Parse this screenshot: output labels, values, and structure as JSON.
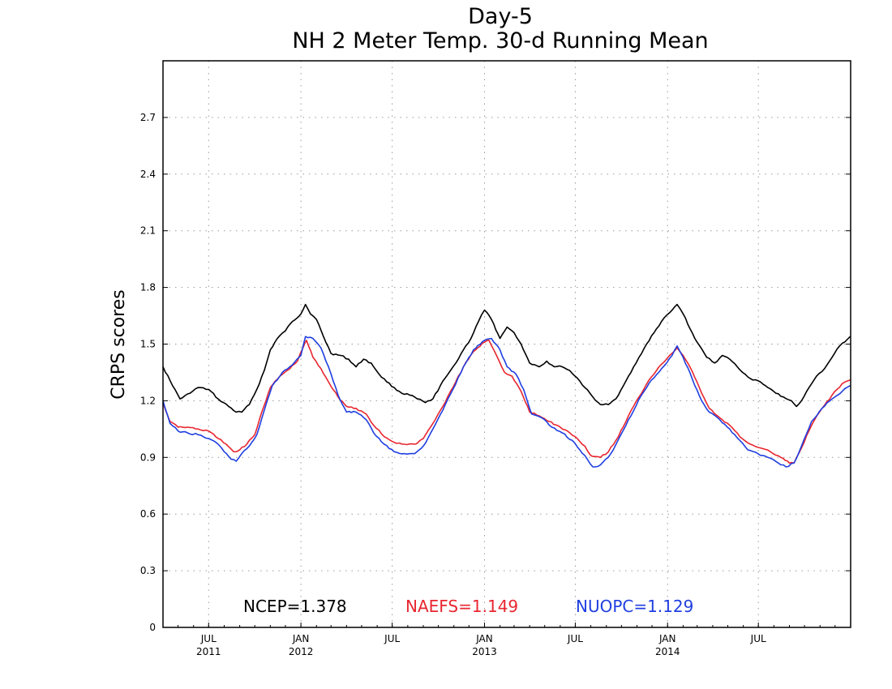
{
  "chart_data": {
    "type": "line",
    "title": "Day-5",
    "subtitle": "NH 2 Meter Temp. 30-d Running Mean",
    "xlabel": "",
    "ylabel": "CRPS scores",
    "ylim": [
      0,
      3.0
    ],
    "xlim": [
      "2011-04-01",
      "2015-01-01"
    ],
    "y_ticks": [
      "0",
      "0.3",
      "0.6",
      "0.9",
      "1.2",
      "1.5",
      "1.8",
      "2.1",
      "2.4",
      "2.7"
    ],
    "x_ticks": [
      {
        "date": "2011-07-01",
        "month": "JUL",
        "year": "2011"
      },
      {
        "date": "2012-01-01",
        "month": "JAN",
        "year": "2012"
      },
      {
        "date": "2012-07-01",
        "month": "JUL",
        "year": ""
      },
      {
        "date": "2013-01-01",
        "month": "JAN",
        "year": "2013"
      },
      {
        "date": "2013-07-01",
        "month": "JUL",
        "year": ""
      },
      {
        "date": "2014-01-01",
        "month": "JAN",
        "year": "2014"
      },
      {
        "date": "2014-07-01",
        "month": "JUL",
        "year": ""
      }
    ],
    "grid": true,
    "legend_position": "bottom",
    "series": [
      {
        "name": "NCEP",
        "legend": "NCEP=1.378",
        "color": "#000000",
        "points": [
          [
            "2011-04-01",
            1.38
          ],
          [
            "2011-04-20",
            1.28
          ],
          [
            "2011-05-05",
            1.21
          ],
          [
            "2011-05-25",
            1.24
          ],
          [
            "2011-06-10",
            1.27
          ],
          [
            "2011-07-01",
            1.26
          ],
          [
            "2011-07-20",
            1.21
          ],
          [
            "2011-08-10",
            1.17
          ],
          [
            "2011-08-25",
            1.14
          ],
          [
            "2011-09-05",
            1.14
          ],
          [
            "2011-09-20",
            1.18
          ],
          [
            "2011-10-05",
            1.26
          ],
          [
            "2011-10-20",
            1.36
          ],
          [
            "2011-11-01",
            1.47
          ],
          [
            "2011-11-15",
            1.53
          ],
          [
            "2011-12-01",
            1.57
          ],
          [
            "2011-12-15",
            1.62
          ],
          [
            "2012-01-01",
            1.66
          ],
          [
            "2012-01-10",
            1.71
          ],
          [
            "2012-01-20",
            1.66
          ],
          [
            "2012-02-01",
            1.63
          ],
          [
            "2012-02-15",
            1.54
          ],
          [
            "2012-03-01",
            1.45
          ],
          [
            "2012-03-20",
            1.44
          ],
          [
            "2012-04-05",
            1.42
          ],
          [
            "2012-04-20",
            1.38
          ],
          [
            "2012-05-05",
            1.42
          ],
          [
            "2012-05-20",
            1.4
          ],
          [
            "2012-06-05",
            1.34
          ],
          [
            "2012-06-20",
            1.3
          ],
          [
            "2012-07-05",
            1.27
          ],
          [
            "2012-07-20",
            1.24
          ],
          [
            "2012-08-05",
            1.23
          ],
          [
            "2012-08-20",
            1.21
          ],
          [
            "2012-09-05",
            1.19
          ],
          [
            "2012-09-20",
            1.21
          ],
          [
            "2012-10-05",
            1.28
          ],
          [
            "2012-10-20",
            1.34
          ],
          [
            "2012-11-05",
            1.4
          ],
          [
            "2012-11-20",
            1.47
          ],
          [
            "2012-12-05",
            1.53
          ],
          [
            "2012-12-20",
            1.62
          ],
          [
            "2013-01-01",
            1.68
          ],
          [
            "2013-01-15",
            1.63
          ],
          [
            "2013-02-01",
            1.53
          ],
          [
            "2013-02-15",
            1.59
          ],
          [
            "2013-03-01",
            1.56
          ],
          [
            "2013-03-15",
            1.5
          ],
          [
            "2013-04-01",
            1.4
          ],
          [
            "2013-04-20",
            1.38
          ],
          [
            "2013-05-05",
            1.41
          ],
          [
            "2013-05-20",
            1.38
          ],
          [
            "2013-06-05",
            1.38
          ],
          [
            "2013-06-20",
            1.36
          ],
          [
            "2013-07-05",
            1.32
          ],
          [
            "2013-07-20",
            1.27
          ],
          [
            "2013-08-05",
            1.22
          ],
          [
            "2013-08-20",
            1.18
          ],
          [
            "2013-09-05",
            1.18
          ],
          [
            "2013-09-20",
            1.21
          ],
          [
            "2013-10-05",
            1.28
          ],
          [
            "2013-10-20",
            1.35
          ],
          [
            "2013-11-05",
            1.43
          ],
          [
            "2013-11-20",
            1.5
          ],
          [
            "2013-12-05",
            1.56
          ],
          [
            "2013-12-20",
            1.62
          ],
          [
            "2014-01-10",
            1.68
          ],
          [
            "2014-01-20",
            1.71
          ],
          [
            "2014-02-01",
            1.66
          ],
          [
            "2014-02-15",
            1.58
          ],
          [
            "2014-03-01",
            1.51
          ],
          [
            "2014-03-20",
            1.43
          ],
          [
            "2014-04-05",
            1.4
          ],
          [
            "2014-04-20",
            1.44
          ],
          [
            "2014-05-05",
            1.42
          ],
          [
            "2014-05-20",
            1.38
          ],
          [
            "2014-06-05",
            1.34
          ],
          [
            "2014-06-20",
            1.31
          ],
          [
            "2014-07-05",
            1.3
          ],
          [
            "2014-07-20",
            1.27
          ],
          [
            "2014-08-05",
            1.24
          ],
          [
            "2014-08-20",
            1.22
          ],
          [
            "2014-09-05",
            1.2
          ],
          [
            "2014-09-15",
            1.17
          ],
          [
            "2014-09-25",
            1.2
          ],
          [
            "2014-10-10",
            1.27
          ],
          [
            "2014-10-25",
            1.33
          ],
          [
            "2014-11-10",
            1.37
          ],
          [
            "2014-11-25",
            1.43
          ],
          [
            "2014-12-10",
            1.49
          ],
          [
            "2014-12-31",
            1.54
          ]
        ]
      },
      {
        "name": "NAEFS",
        "legend": "NAEFS=1.149",
        "color": "#e8262f",
        "points": [
          [
            "2011-04-01",
            1.19
          ],
          [
            "2011-04-15",
            1.09
          ],
          [
            "2011-05-01",
            1.06
          ],
          [
            "2011-05-20",
            1.06
          ],
          [
            "2011-06-10",
            1.05
          ],
          [
            "2011-07-01",
            1.04
          ],
          [
            "2011-07-20",
            1.0
          ],
          [
            "2011-08-05",
            0.97
          ],
          [
            "2011-08-20",
            0.93
          ],
          [
            "2011-09-01",
            0.94
          ],
          [
            "2011-09-15",
            0.97
          ],
          [
            "2011-10-01",
            1.02
          ],
          [
            "2011-10-15",
            1.14
          ],
          [
            "2011-11-01",
            1.27
          ],
          [
            "2011-11-20",
            1.33
          ],
          [
            "2011-12-10",
            1.37
          ],
          [
            "2011-12-25",
            1.41
          ],
          [
            "2012-01-05",
            1.48
          ],
          [
            "2012-01-12",
            1.52
          ],
          [
            "2012-01-25",
            1.43
          ],
          [
            "2012-02-10",
            1.37
          ],
          [
            "2012-02-25",
            1.3
          ],
          [
            "2012-03-15",
            1.22
          ],
          [
            "2012-04-01",
            1.17
          ],
          [
            "2012-04-20",
            1.16
          ],
          [
            "2012-05-10",
            1.13
          ],
          [
            "2012-05-25",
            1.07
          ],
          [
            "2012-06-15",
            1.01
          ],
          [
            "2012-07-05",
            0.98
          ],
          [
            "2012-07-25",
            0.97
          ],
          [
            "2012-08-15",
            0.97
          ],
          [
            "2012-09-01",
            1.0
          ],
          [
            "2012-09-20",
            1.08
          ],
          [
            "2012-10-10",
            1.17
          ],
          [
            "2012-10-30",
            1.27
          ],
          [
            "2012-11-20",
            1.38
          ],
          [
            "2012-12-10",
            1.46
          ],
          [
            "2013-01-01",
            1.51
          ],
          [
            "2013-01-10",
            1.52
          ],
          [
            "2013-01-25",
            1.44
          ],
          [
            "2013-02-10",
            1.35
          ],
          [
            "2013-02-25",
            1.33
          ],
          [
            "2013-03-15",
            1.25
          ],
          [
            "2013-04-01",
            1.14
          ],
          [
            "2013-04-20",
            1.12
          ],
          [
            "2013-05-10",
            1.09
          ],
          [
            "2013-06-01",
            1.06
          ],
          [
            "2013-06-20",
            1.03
          ],
          [
            "2013-07-05",
            1.0
          ],
          [
            "2013-07-20",
            0.96
          ],
          [
            "2013-08-01",
            0.91
          ],
          [
            "2013-08-20",
            0.9
          ],
          [
            "2013-09-05",
            0.93
          ],
          [
            "2013-09-25",
            1.01
          ],
          [
            "2013-10-15",
            1.12
          ],
          [
            "2013-11-05",
            1.22
          ],
          [
            "2013-11-25",
            1.31
          ],
          [
            "2013-12-15",
            1.38
          ],
          [
            "2014-01-05",
            1.44
          ],
          [
            "2014-01-20",
            1.48
          ],
          [
            "2014-02-01",
            1.44
          ],
          [
            "2014-02-20",
            1.35
          ],
          [
            "2014-03-10",
            1.24
          ],
          [
            "2014-03-25",
            1.16
          ],
          [
            "2014-04-15",
            1.11
          ],
          [
            "2014-05-05",
            1.07
          ],
          [
            "2014-05-25",
            1.01
          ],
          [
            "2014-06-15",
            0.97
          ],
          [
            "2014-07-05",
            0.95
          ],
          [
            "2014-07-25",
            0.93
          ],
          [
            "2014-08-15",
            0.9
          ],
          [
            "2014-09-01",
            0.87
          ],
          [
            "2014-09-10",
            0.87
          ],
          [
            "2014-09-25",
            0.95
          ],
          [
            "2014-10-15",
            1.07
          ],
          [
            "2014-11-05",
            1.16
          ],
          [
            "2014-11-25",
            1.23
          ],
          [
            "2014-12-15",
            1.29
          ],
          [
            "2014-12-31",
            1.31
          ]
        ]
      },
      {
        "name": "NUOPC",
        "legend": "NUOPC=1.129",
        "color": "#1f3fe0",
        "points": [
          [
            "2011-04-01",
            1.2
          ],
          [
            "2011-04-15",
            1.08
          ],
          [
            "2011-05-01",
            1.04
          ],
          [
            "2011-05-20",
            1.03
          ],
          [
            "2011-06-10",
            1.02
          ],
          [
            "2011-07-01",
            1.0
          ],
          [
            "2011-07-20",
            0.97
          ],
          [
            "2011-08-01",
            0.93
          ],
          [
            "2011-08-15",
            0.89
          ],
          [
            "2011-08-25",
            0.88
          ],
          [
            "2011-09-05",
            0.92
          ],
          [
            "2011-09-20",
            0.96
          ],
          [
            "2011-10-05",
            1.02
          ],
          [
            "2011-10-20",
            1.15
          ],
          [
            "2011-11-05",
            1.28
          ],
          [
            "2011-11-25",
            1.35
          ],
          [
            "2011-12-15",
            1.39
          ],
          [
            "2012-01-01",
            1.44
          ],
          [
            "2012-01-10",
            1.54
          ],
          [
            "2012-01-25",
            1.53
          ],
          [
            "2012-02-10",
            1.48
          ],
          [
            "2012-02-25",
            1.38
          ],
          [
            "2012-03-15",
            1.23
          ],
          [
            "2012-04-01",
            1.14
          ],
          [
            "2012-04-20",
            1.14
          ],
          [
            "2012-05-10",
            1.1
          ],
          [
            "2012-05-25",
            1.03
          ],
          [
            "2012-06-15",
            0.97
          ],
          [
            "2012-07-05",
            0.93
          ],
          [
            "2012-07-25",
            0.92
          ],
          [
            "2012-08-15",
            0.92
          ],
          [
            "2012-09-01",
            0.96
          ],
          [
            "2012-09-20",
            1.05
          ],
          [
            "2012-10-10",
            1.15
          ],
          [
            "2012-10-30",
            1.26
          ],
          [
            "2012-11-20",
            1.38
          ],
          [
            "2012-12-10",
            1.47
          ],
          [
            "2013-01-01",
            1.52
          ],
          [
            "2013-01-15",
            1.53
          ],
          [
            "2013-02-01",
            1.47
          ],
          [
            "2013-02-15",
            1.38
          ],
          [
            "2013-03-05",
            1.34
          ],
          [
            "2013-03-20",
            1.26
          ],
          [
            "2013-04-05",
            1.13
          ],
          [
            "2013-04-25",
            1.11
          ],
          [
            "2013-05-15",
            1.06
          ],
          [
            "2013-06-05",
            1.03
          ],
          [
            "2013-06-25",
            0.99
          ],
          [
            "2013-07-10",
            0.94
          ],
          [
            "2013-07-25",
            0.89
          ],
          [
            "2013-08-05",
            0.85
          ],
          [
            "2013-08-20",
            0.86
          ],
          [
            "2013-09-10",
            0.92
          ],
          [
            "2013-09-30",
            1.02
          ],
          [
            "2013-10-20",
            1.12
          ],
          [
            "2013-11-10",
            1.23
          ],
          [
            "2013-11-30",
            1.31
          ],
          [
            "2013-12-20",
            1.37
          ],
          [
            "2014-01-10",
            1.44
          ],
          [
            "2014-01-20",
            1.49
          ],
          [
            "2014-02-01",
            1.43
          ],
          [
            "2014-02-20",
            1.31
          ],
          [
            "2014-03-10",
            1.2
          ],
          [
            "2014-03-25",
            1.14
          ],
          [
            "2014-04-15",
            1.1
          ],
          [
            "2014-05-05",
            1.05
          ],
          [
            "2014-05-25",
            0.99
          ],
          [
            "2014-06-10",
            0.94
          ],
          [
            "2014-06-30",
            0.92
          ],
          [
            "2014-07-20",
            0.9
          ],
          [
            "2014-08-10",
            0.87
          ],
          [
            "2014-08-25",
            0.85
          ],
          [
            "2014-09-10",
            0.87
          ],
          [
            "2014-09-25",
            0.96
          ],
          [
            "2014-10-15",
            1.09
          ],
          [
            "2014-11-05",
            1.16
          ],
          [
            "2014-11-25",
            1.21
          ],
          [
            "2014-12-15",
            1.25
          ],
          [
            "2014-12-31",
            1.28
          ]
        ]
      }
    ]
  }
}
